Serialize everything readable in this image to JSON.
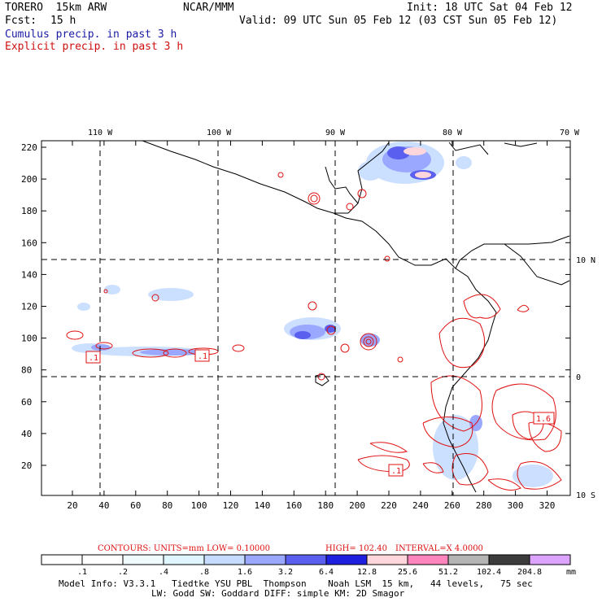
{
  "header": {
    "model": "TORERO  15km ARW",
    "org": "NCAR/MMM",
    "init": "Init: 18 UTC Sat 04 Feb 12",
    "fcst_label": "Fcst:",
    "fcst_value": "15 h",
    "valid": "Valid: 09 UTC Sun 05 Feb 12 (03 CST Sun 05 Feb 12)",
    "field1": "Cumulus precip. in past 3 h",
    "field2": "Explicit precip. in past 3 h"
  },
  "map": {
    "lon_labels": [
      "110 W",
      "100 W",
      "90 W",
      "80 W",
      "70 W"
    ],
    "lat_labels": [
      "10 N",
      "0",
      "10 S"
    ],
    "y_ticks": [
      "220",
      "200",
      "180",
      "160",
      "140",
      "120",
      "100",
      "80",
      "60",
      "40",
      "20"
    ],
    "x_ticks": [
      "20",
      "40",
      "60",
      "80",
      "100",
      "120",
      "140",
      "160",
      "180",
      "200",
      "220",
      "240",
      "260",
      "280",
      "300",
      "320"
    ],
    "contour_labels": [
      ".1",
      ".1",
      ".1",
      "1.6"
    ]
  },
  "contour_info": {
    "contours": "CONTOURS:  UNITS=mm  LOW= 0.10000",
    "high": "HIGH=  102.40",
    "interval": "INTERVAL=X  4.0000"
  },
  "colorbar": {
    "labels": [
      ".1",
      ".2",
      ".4",
      ".8",
      "1.6",
      "3.2",
      "6.4",
      "12.8",
      "25.6",
      "51.2",
      "102.4",
      "204.8"
    ],
    "unit": "mm",
    "colors": [
      "#ffffff",
      "#ffffff",
      "#f0fbff",
      "#dff6ff",
      "#c6dcff",
      "#9aa8ff",
      "#5a5ff0",
      "#1f1fe0",
      "#ffd6dc",
      "#ff86bc",
      "#b4b4b4",
      "#3c3c3c",
      "#dca4ff"
    ]
  },
  "footer": {
    "line1": "Model Info: V3.3.1   Tiedtke YSU PBL  Thompson    Noah LSM  15 km,   44 levels,   75 sec",
    "line2": "LW: Godd SW: Goddard DIFF: simple KM: 2D Smagor"
  }
}
